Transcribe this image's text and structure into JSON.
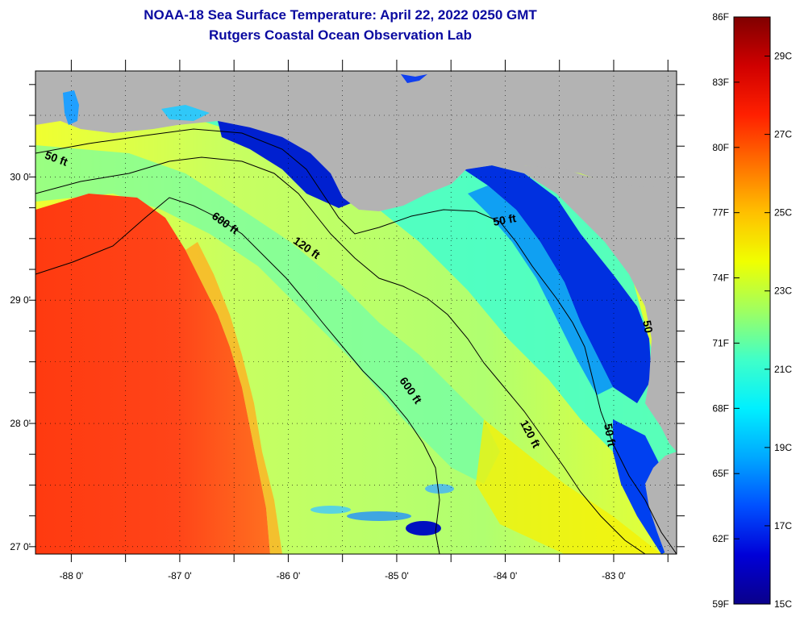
{
  "title": {
    "line1": "NOAA-18 Sea Surface Temperature:  April 22, 2022 0250 GMT",
    "line2": "Rutgers Coastal Ocean Observation Lab",
    "color": "#0a0aa0"
  },
  "map": {
    "land_color": "#b3b3b3",
    "lon_range": [
      -88.33,
      -82.42
    ],
    "lat_range": [
      26.94,
      30.86
    ],
    "lon_labels": [
      {
        "value": -88,
        "text": "-88 0'"
      },
      {
        "value": -87,
        "text": "-87 0'"
      },
      {
        "value": -86,
        "text": "-86 0'"
      },
      {
        "value": -85,
        "text": "-85 0'"
      },
      {
        "value": -84,
        "text": "-84 0'"
      },
      {
        "value": -83,
        "text": "-83 0'"
      }
    ],
    "lat_labels": [
      {
        "value": 30,
        "text": "30 0'"
      },
      {
        "value": 29,
        "text": "29 0'"
      },
      {
        "value": 28,
        "text": "28 0'"
      },
      {
        "value": 27,
        "text": "27 0'"
      }
    ],
    "contour_labels": [
      {
        "text": "50 ft",
        "lon": -88.15,
        "lat": 30.12,
        "rotate": 20
      },
      {
        "text": "600 ft",
        "lon": -86.6,
        "lat": 29.6,
        "rotate": 35
      },
      {
        "text": "120 ft",
        "lon": -85.85,
        "lat": 29.4,
        "rotate": 35
      },
      {
        "text": "50 ft",
        "lon": -84.0,
        "lat": 29.62,
        "rotate": -10
      },
      {
        "text": "600 ft",
        "lon": -84.9,
        "lat": 28.25,
        "rotate": 55
      },
      {
        "text": "120 ft",
        "lon": -83.8,
        "lat": 27.9,
        "rotate": 62
      },
      {
        "text": "50 ft",
        "lon": -83.07,
        "lat": 27.9,
        "rotate": 80
      },
      {
        "text": "50",
        "lon": -82.72,
        "lat": 28.78,
        "rotate": 80
      }
    ]
  },
  "colorbar": {
    "stops": [
      "#0a008a",
      "#0000d8",
      "#0050ff",
      "#00a8ff",
      "#00f0ff",
      "#40ffc8",
      "#a0ff60",
      "#f0ff00",
      "#ffc000",
      "#ff7000",
      "#ff2000",
      "#d00000",
      "#800000"
    ],
    "fahrenheit_labels": [
      "86F",
      "83F",
      "80F",
      "77F",
      "74F",
      "71F",
      "68F",
      "65F",
      "62F",
      "59F"
    ],
    "celsius_labels": [
      "29C",
      "27C",
      "25C",
      "23C",
      "21C",
      "19C",
      "17C",
      "15C"
    ]
  }
}
